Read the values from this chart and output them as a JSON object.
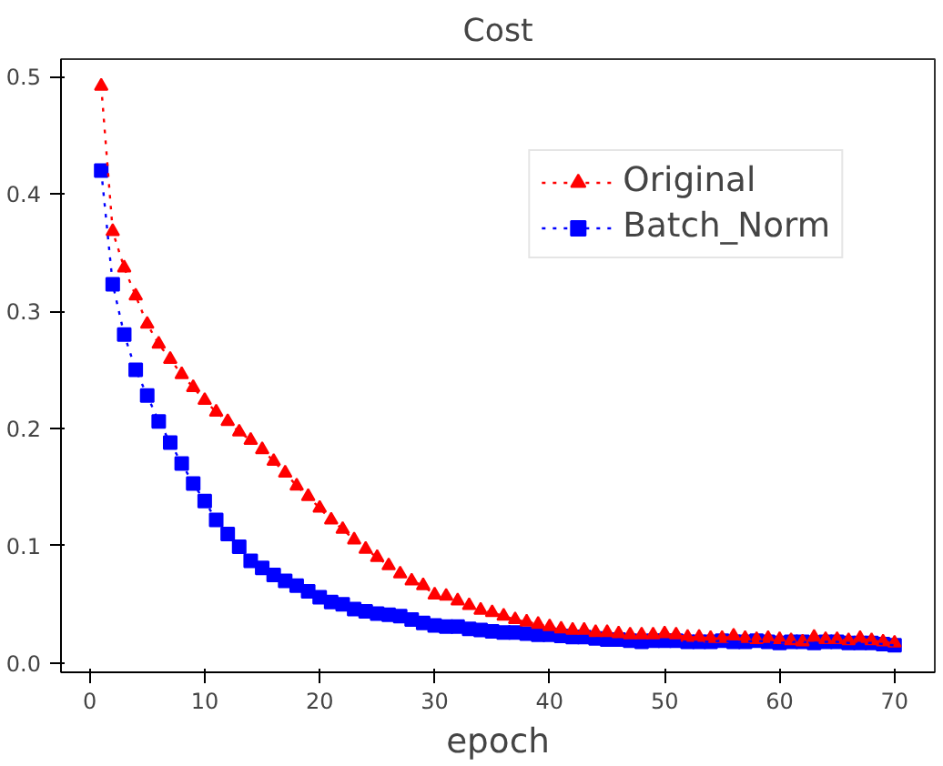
{
  "chart_data": {
    "type": "line",
    "title": "Cost",
    "xlabel": "epoch",
    "x": [
      1,
      2,
      3,
      4,
      5,
      6,
      7,
      8,
      9,
      10,
      11,
      12,
      13,
      14,
      15,
      16,
      17,
      18,
      19,
      20,
      21,
      22,
      23,
      24,
      25,
      26,
      27,
      28,
      29,
      30,
      31,
      32,
      33,
      34,
      35,
      36,
      37,
      38,
      39,
      40,
      41,
      42,
      43,
      44,
      45,
      46,
      47,
      48,
      49,
      50,
      51,
      52,
      53,
      54,
      55,
      56,
      57,
      58,
      59,
      60,
      61,
      62,
      63,
      64,
      65,
      66,
      67,
      68,
      69,
      70
    ],
    "series": [
      {
        "name": "Original",
        "color": "#ff0000",
        "marker": "triangle",
        "values": [
          0.492,
          0.368,
          0.337,
          0.313,
          0.289,
          0.272,
          0.259,
          0.246,
          0.235,
          0.224,
          0.214,
          0.206,
          0.197,
          0.19,
          0.182,
          0.172,
          0.162,
          0.151,
          0.142,
          0.132,
          0.122,
          0.114,
          0.105,
          0.097,
          0.09,
          0.083,
          0.076,
          0.07,
          0.066,
          0.058,
          0.057,
          0.053,
          0.049,
          0.045,
          0.043,
          0.04,
          0.037,
          0.035,
          0.033,
          0.031,
          0.029,
          0.028,
          0.028,
          0.026,
          0.026,
          0.025,
          0.024,
          0.024,
          0.024,
          0.025,
          0.024,
          0.022,
          0.022,
          0.021,
          0.021,
          0.023,
          0.021,
          0.02,
          0.021,
          0.02,
          0.019,
          0.018,
          0.022,
          0.02,
          0.02,
          0.019,
          0.021,
          0.019,
          0.018,
          0.017
        ]
      },
      {
        "name": "Batch_Norm",
        "color": "#0000ff",
        "marker": "square",
        "values": [
          0.42,
          0.323,
          0.28,
          0.25,
          0.228,
          0.206,
          0.188,
          0.17,
          0.153,
          0.138,
          0.122,
          0.11,
          0.099,
          0.087,
          0.081,
          0.075,
          0.07,
          0.066,
          0.061,
          0.056,
          0.052,
          0.05,
          0.046,
          0.044,
          0.042,
          0.041,
          0.04,
          0.037,
          0.034,
          0.032,
          0.031,
          0.031,
          0.029,
          0.028,
          0.027,
          0.026,
          0.026,
          0.025,
          0.024,
          0.024,
          0.023,
          0.022,
          0.022,
          0.021,
          0.02,
          0.02,
          0.019,
          0.018,
          0.019,
          0.019,
          0.019,
          0.018,
          0.018,
          0.018,
          0.019,
          0.018,
          0.018,
          0.019,
          0.018,
          0.017,
          0.018,
          0.018,
          0.017,
          0.018,
          0.018,
          0.017,
          0.017,
          0.017,
          0.016,
          0.015
        ]
      }
    ],
    "xlim": [
      -2.5,
      73.5
    ],
    "ylim": [
      -0.008,
      0.515
    ],
    "xticks": [
      0,
      10,
      20,
      30,
      40,
      50,
      60,
      70
    ],
    "yticks": [
      {
        "value": 0,
        "label": "0.0"
      },
      {
        "value": 0.1,
        "label": "0.1"
      },
      {
        "value": 0.2,
        "label": "0.2"
      },
      {
        "value": 0.3,
        "label": "0.3"
      },
      {
        "value": 0.4,
        "label": "0.4"
      },
      {
        "value": 0.5,
        "label": "0.5"
      }
    ],
    "legend": "top right",
    "line_style": "dotted",
    "grid": false
  }
}
